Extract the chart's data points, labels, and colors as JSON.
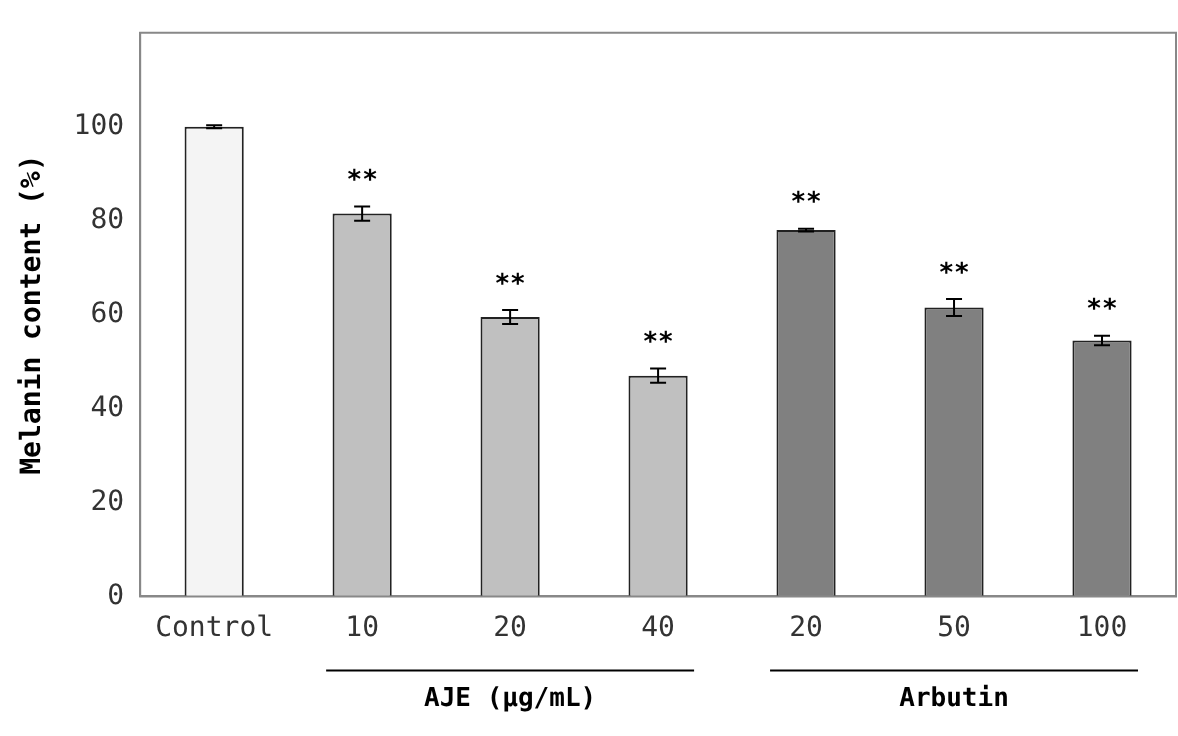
{
  "chart_data": {
    "type": "bar",
    "ylabel": "Melanin content (%)",
    "categories": [
      "Control",
      "10",
      "20",
      "40",
      "20",
      "50",
      "100"
    ],
    "values": [
      100,
      81.5,
      59.5,
      47,
      78,
      61.5,
      54.5
    ],
    "colors": [
      "#f4f4f4",
      "#c0c0c0",
      "#c0c0c0",
      "#c0c0c0",
      "#808080",
      "#808080",
      "#808080"
    ],
    "errors": [
      0.3,
      1.5,
      1.5,
      1.5,
      0.3,
      1.8,
      1
    ],
    "value_labels": [
      null,
      "**",
      "**",
      "**",
      "**",
      "**",
      "**"
    ],
    "annotations": [
      "AJE (μg/mL)",
      "Arbutin"
    ],
    "ylim": [
      0,
      120
    ],
    "yticks": [
      0,
      20,
      40,
      60,
      80,
      100
    ],
    "grid": false,
    "legend": false
  }
}
